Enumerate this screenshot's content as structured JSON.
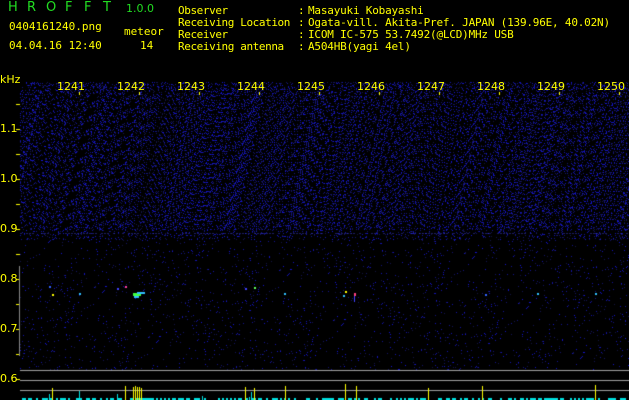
{
  "header": {
    "app_title_letters": [
      "H",
      "R",
      "O",
      "F",
      "F",
      "T"
    ],
    "version": "1.0.0",
    "filename": "0404161240.png",
    "datetime": "04.04.16 12:40",
    "meteor_label": "meteor",
    "meteor_count": "14"
  },
  "info": [
    {
      "label": "Observer",
      "value": "Masayuki Kobayashi"
    },
    {
      "label": "Receiving Location",
      "value": "Ogata-vill. Akita-Pref. JAPAN (139.96E, 40.02N)"
    },
    {
      "label": "Receiver",
      "value": "ICOM IC-575 53.7492(@LCD)MHz USB"
    },
    {
      "label": "Receiving antenna",
      "value": "A504HB(yagi 4el)"
    }
  ],
  "spectrogram": {
    "y_unit": "kHz",
    "x_ticks": [
      "1241",
      "1242",
      "1243",
      "1244",
      "1245",
      "1246",
      "1247",
      "1248",
      "1249",
      "1250"
    ],
    "y_ticks": [
      "1.1",
      "1.0",
      "0.9",
      "0.8",
      "0.7",
      "0.6"
    ],
    "colors": {
      "text": "#ffff00",
      "title": "#22dd22",
      "noise": "#2020c0",
      "echo_bar": "#00e0e0",
      "strong_bar": "#ffff00",
      "lines": "#a0a0a0"
    }
  }
}
